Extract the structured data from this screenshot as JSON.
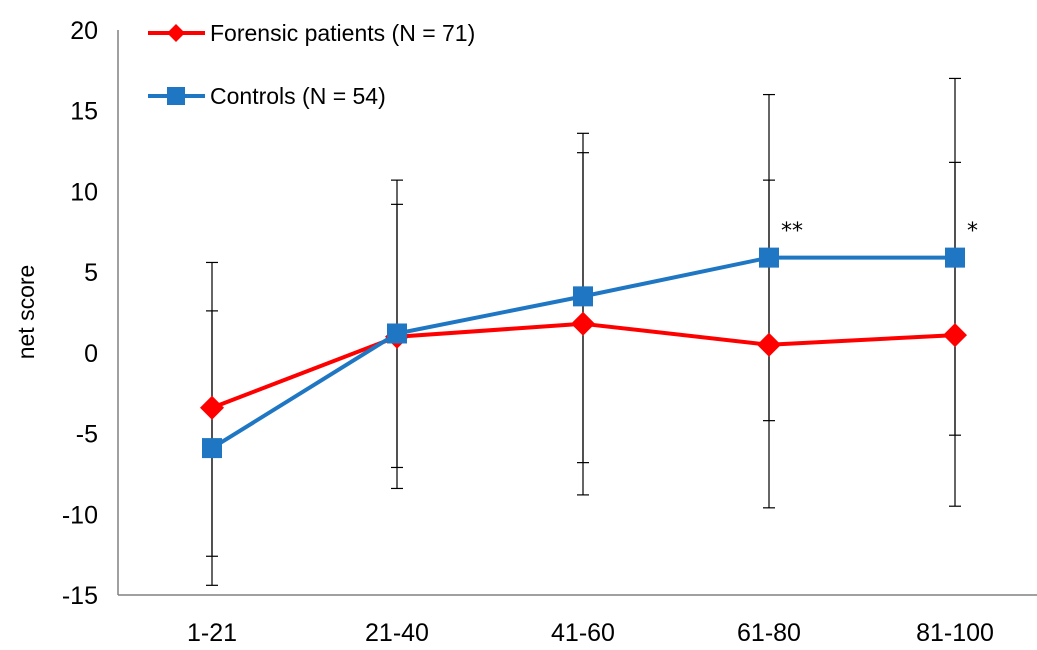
{
  "chart_data": {
    "type": "line",
    "categories": [
      "1-21",
      "21-40",
      "41-60",
      "61-80",
      "81-100"
    ],
    "ylabel": "net score",
    "xlabel": "",
    "ylim": [
      -15,
      20
    ],
    "yticks": [
      -15,
      -10,
      -5,
      0,
      5,
      10,
      15,
      20
    ],
    "grid": false,
    "legend_position": "top-left",
    "series": [
      {
        "name": "Forensic patients (N = 71)",
        "color": "#ff0000",
        "marker": "diamond",
        "values": [
          -3.4,
          1.0,
          1.8,
          0.5,
          1.1
        ],
        "error_low": [
          -14.4,
          -8.4,
          -6.8,
          -9.6,
          -5.1
        ],
        "error_high": [
          2.6,
          10.7,
          13.6,
          10.7,
          11.8
        ]
      },
      {
        "name": "Controls (N = 54)",
        "color": "#1f77c4",
        "marker": "square",
        "values": [
          -5.9,
          1.2,
          3.5,
          5.9,
          5.9
        ],
        "error_low": [
          -12.6,
          -7.1,
          -8.8,
          -4.2,
          -9.5
        ],
        "error_high": [
          5.6,
          9.2,
          12.4,
          16.0,
          17.0
        ]
      }
    ],
    "annotations": [
      {
        "category": "61-80",
        "text": "**"
      },
      {
        "category": "81-100",
        "text": "*"
      }
    ]
  }
}
